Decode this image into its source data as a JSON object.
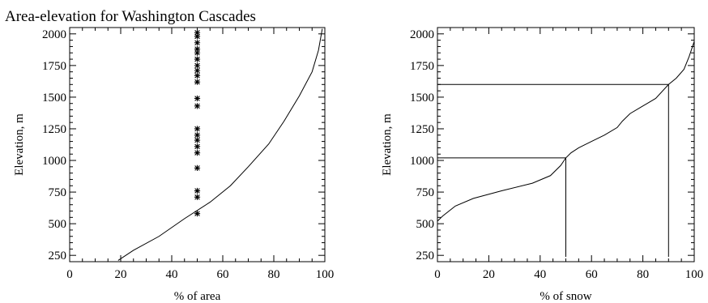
{
  "chart_data": [
    {
      "type": "line",
      "title": "Area-elevation for Washington Cascades",
      "xlabel": "% of area",
      "ylabel": "Elevation, m",
      "xlim": [
        0,
        100
      ],
      "ylim": [
        200,
        2050
      ],
      "xticks": [
        0,
        20,
        40,
        60,
        80,
        100
      ],
      "xtick_labels": [
        "0",
        "20",
        "40",
        "60",
        "80",
        "100"
      ],
      "yticks": [
        250,
        500,
        750,
        1000,
        1250,
        1500,
        1750,
        2000
      ],
      "ytick_labels": [
        "250",
        "500",
        "750",
        "1000",
        "1250",
        "1500",
        "1750",
        "2000"
      ],
      "grid": false,
      "series": [
        {
          "x": [
            19,
            25,
            35,
            45,
            55,
            63,
            70,
            78,
            84,
            90,
            95,
            97.5,
            99
          ],
          "y": [
            210,
            290,
            400,
            540,
            670,
            800,
            950,
            1130,
            1310,
            1510,
            1700,
            1870,
            2040
          ]
        },
        {
          "marker": "asterisk",
          "x": [
            50,
            50,
            50,
            50,
            50,
            50,
            50,
            50,
            50,
            50,
            50,
            50,
            50,
            50,
            50,
            50,
            50,
            50,
            50,
            50,
            50
          ],
          "y": [
            580,
            710,
            760,
            940,
            1060,
            1110,
            1160,
            1200,
            1250,
            1430,
            1490,
            1620,
            1670,
            1710,
            1750,
            1800,
            1850,
            1880,
            1930,
            1980,
            2010
          ]
        }
      ]
    },
    {
      "type": "line",
      "title": "",
      "xlabel": "% of snow",
      "ylabel": "Elevation, m",
      "xlim": [
        0,
        100
      ],
      "ylim": [
        200,
        2050
      ],
      "xticks": [
        0,
        20,
        40,
        60,
        80,
        100
      ],
      "xtick_labels": [
        "0",
        "20",
        "40",
        "60",
        "80",
        "100"
      ],
      "yticks": [
        250,
        500,
        750,
        1000,
        1250,
        1500,
        1750,
        2000
      ],
      "ytick_labels": [
        "250",
        "500",
        "750",
        "1000",
        "1250",
        "1500",
        "1750",
        "2000"
      ],
      "grid": false,
      "series": [
        {
          "x": [
            0,
            2,
            7,
            14,
            25,
            37,
            44,
            48,
            50,
            52,
            55,
            60,
            65,
            70,
            72,
            75,
            80,
            85,
            90,
            93,
            96,
            98,
            100
          ],
          "y": [
            520,
            560,
            640,
            700,
            760,
            820,
            880,
            960,
            1020,
            1060,
            1100,
            1150,
            1200,
            1260,
            1310,
            1370,
            1430,
            1490,
            1600,
            1650,
            1720,
            1820,
            1940
          ]
        }
      ],
      "reference_lines": [
        {
          "x": 50,
          "y": 1020
        },
        {
          "x": 90,
          "y": 1600
        }
      ]
    }
  ]
}
